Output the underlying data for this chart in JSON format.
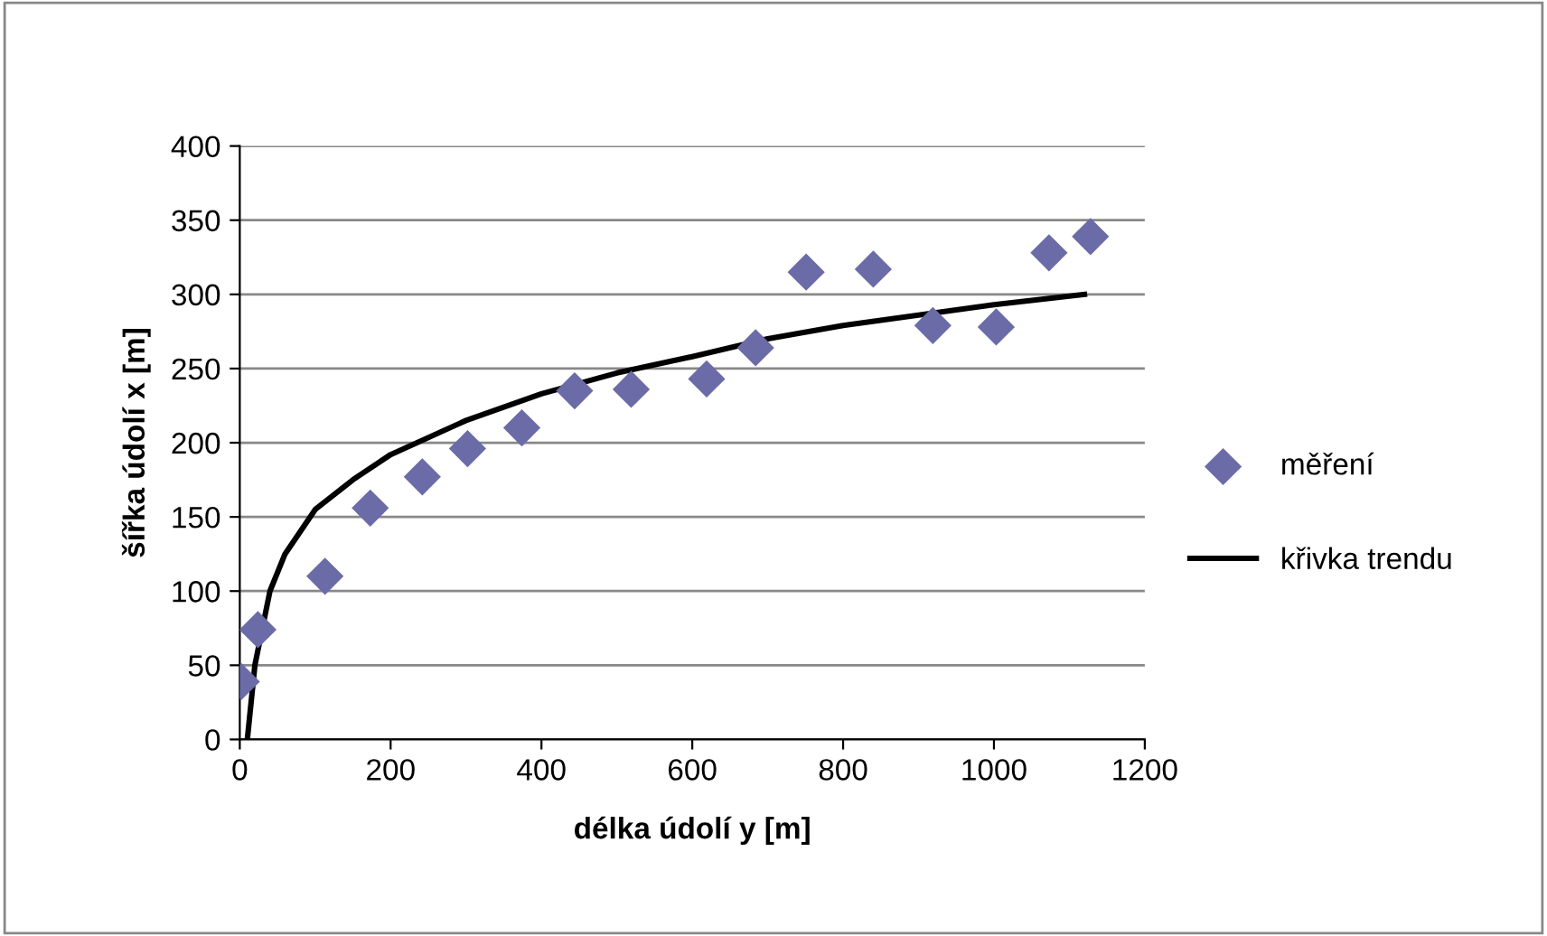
{
  "chart_data": {
    "type": "scatter",
    "xlabel": "délka údolí y [m]",
    "ylabel": "šířka údolí x [m]",
    "xlim": [
      0,
      1200
    ],
    "ylim": [
      0,
      400
    ],
    "xticks": [
      0,
      200,
      400,
      600,
      800,
      1000,
      1200
    ],
    "yticks": [
      0,
      50,
      100,
      150,
      200,
      250,
      300,
      350,
      400
    ],
    "grid": "y",
    "legend": "right",
    "marker": "diamond",
    "series": [
      {
        "name": "měření",
        "color": "#6b6ba8",
        "x": [
          2,
          24,
          113,
          173,
          242,
          302,
          374,
          444,
          519,
          619,
          684,
          751,
          840,
          919,
          1003,
          1073,
          1128
        ],
        "values": [
          39,
          74,
          110,
          156,
          177,
          196,
          210,
          235,
          236,
          243,
          264,
          315,
          317,
          279,
          278,
          328,
          339
        ]
      },
      {
        "name": "křivka trendu",
        "type": "line",
        "color": "#000000",
        "marker": "none",
        "line_style": "solid",
        "x": [
          10,
          20,
          40,
          60,
          100,
          150,
          200,
          300,
          400,
          500,
          600,
          700,
          800,
          900,
          1000,
          1120
        ],
        "values": [
          0,
          50,
          100,
          125,
          155,
          175,
          192,
          215,
          233,
          247,
          258,
          270,
          279,
          286,
          293,
          300
        ]
      }
    ]
  }
}
